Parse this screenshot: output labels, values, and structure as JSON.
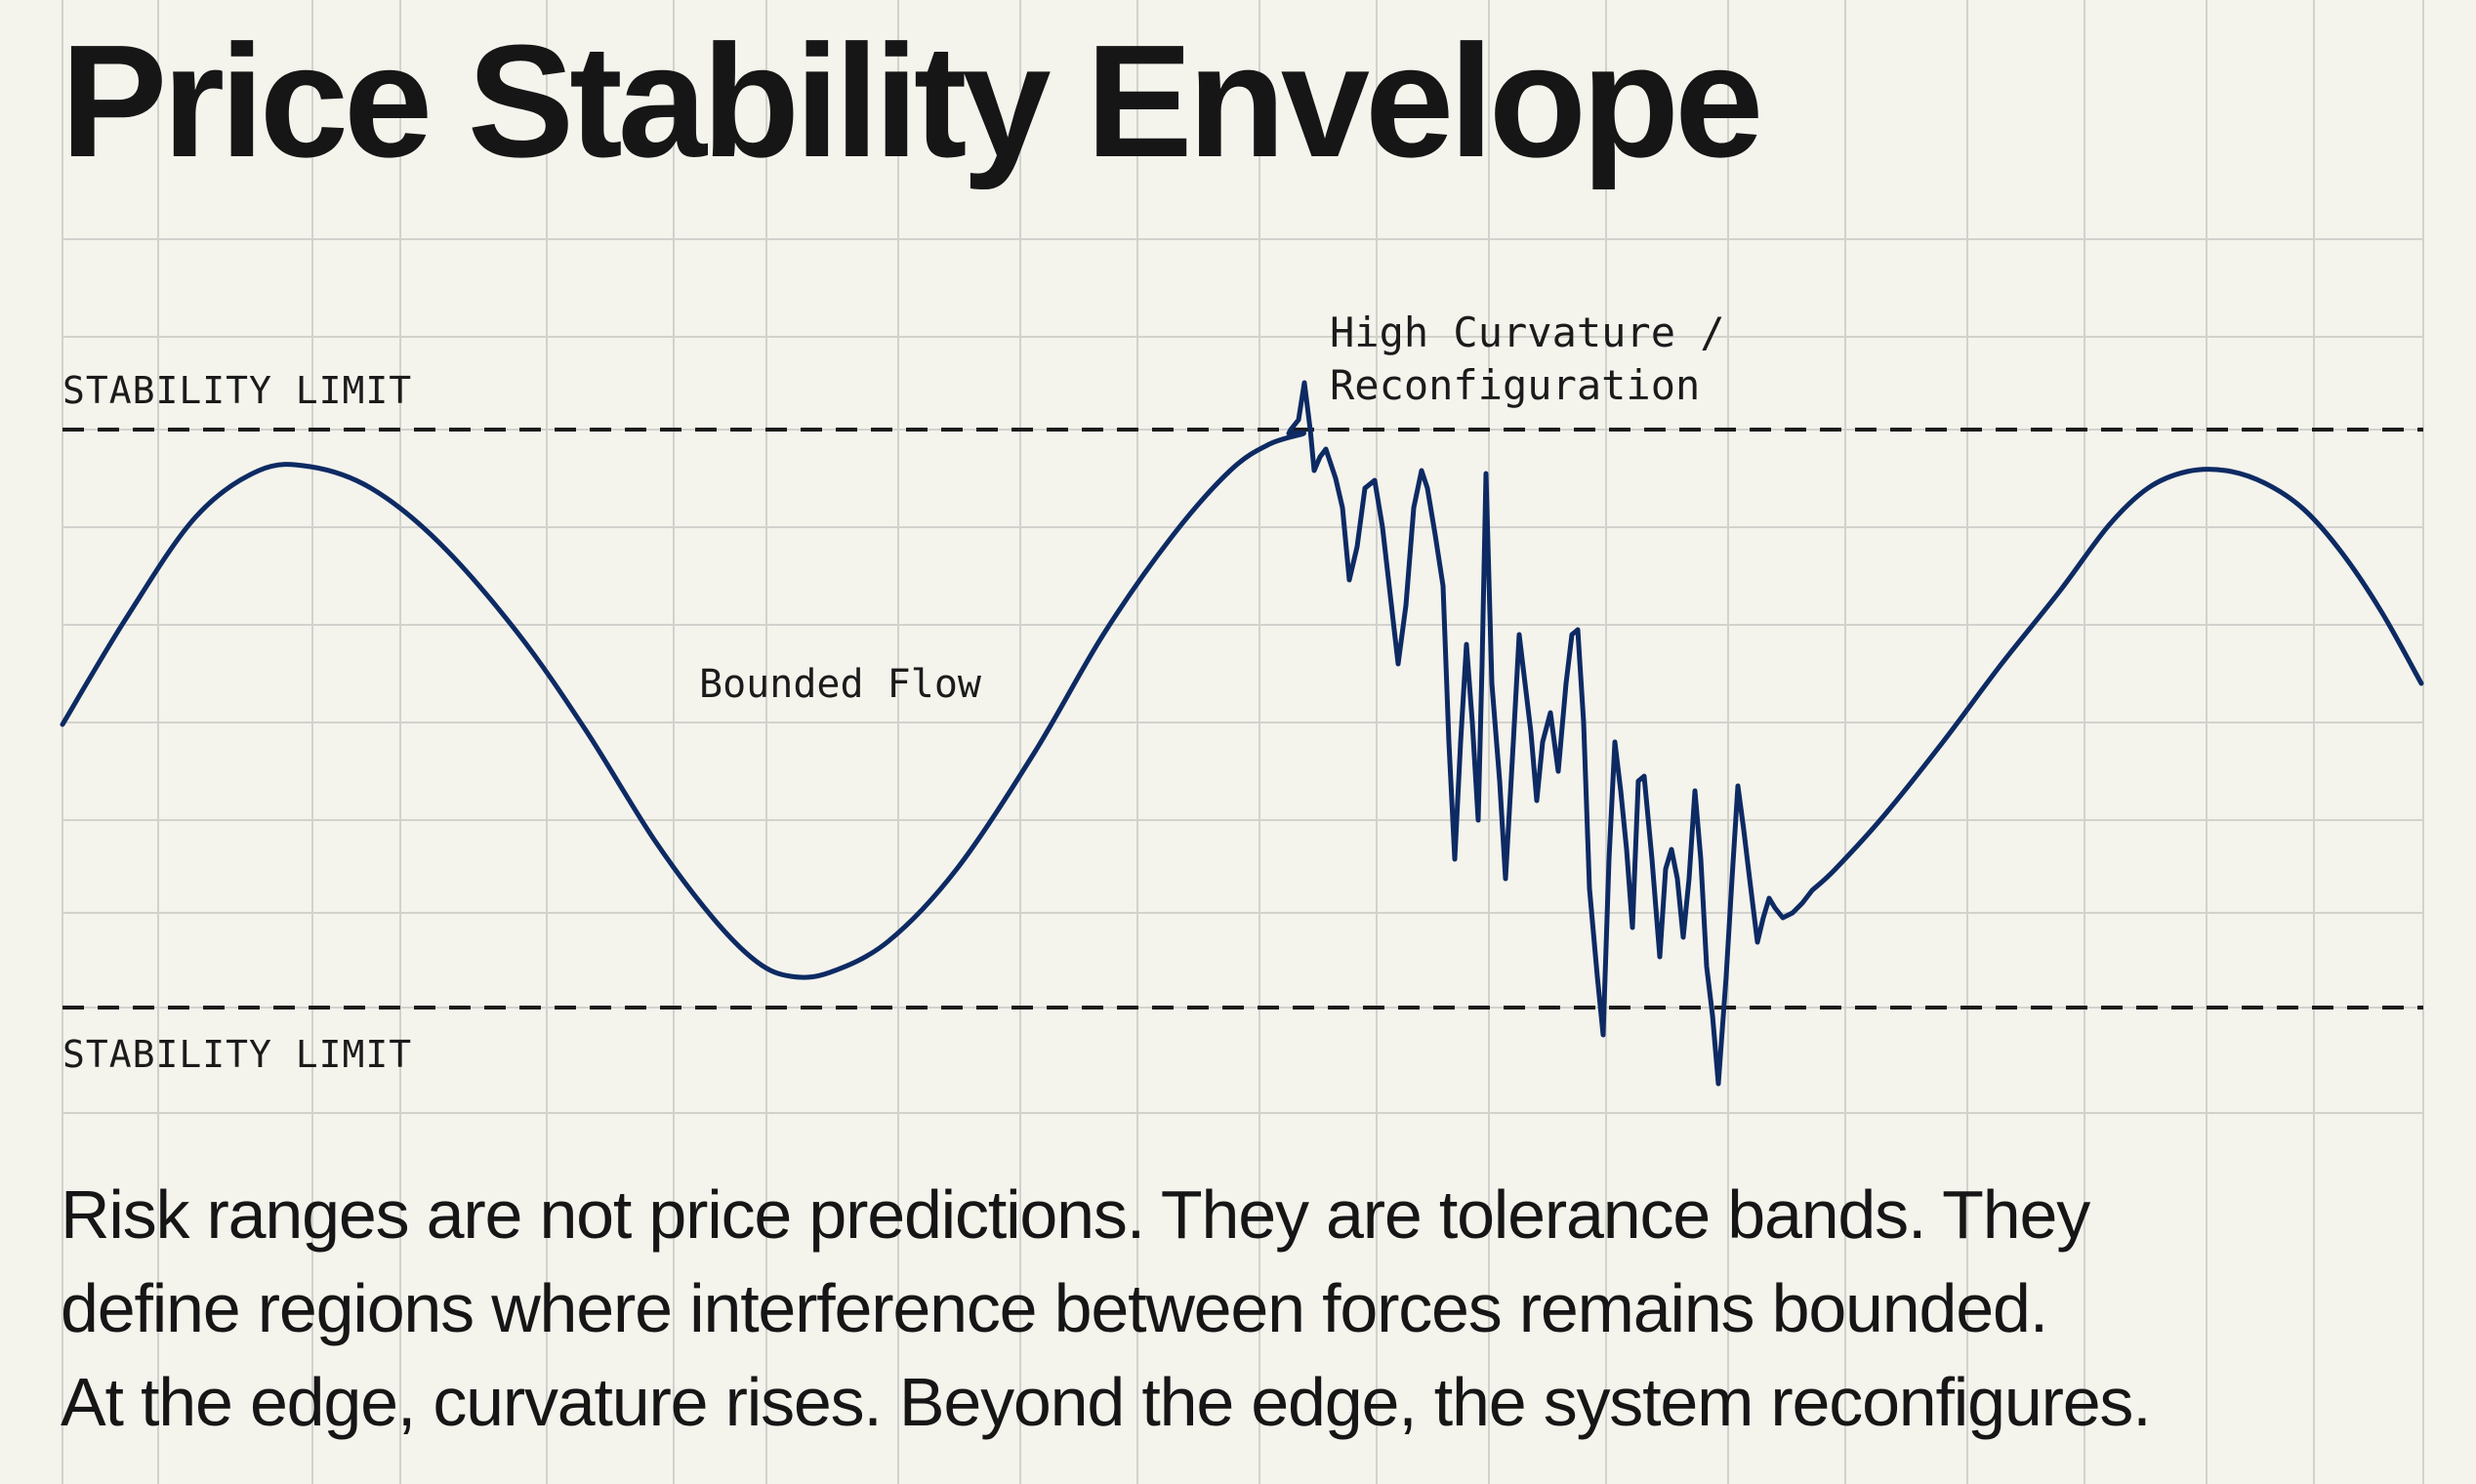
{
  "title": "Price Stability Envelope",
  "labels": {
    "upper_limit": "STABILITY LIMIT",
    "lower_limit": "STABILITY LIMIT",
    "bounded_flow": "Bounded Flow",
    "curvature_line1": "High Curvature /",
    "curvature_line2": "Reconfiguration"
  },
  "caption": {
    "line1": "Risk ranges are not price predictions. They are tolerance bands. They",
    "line2": "define regions where interference between forces remains bounded.",
    "line3": "At the edge, curvature rises. Beyond the edge, the system reconfigures."
  },
  "colors": {
    "background": "#f4f3ec",
    "grid": "#d2d2cd",
    "wave": "#0d2a63",
    "limit_line": "#1c1c1c",
    "text": "#161616"
  }
}
